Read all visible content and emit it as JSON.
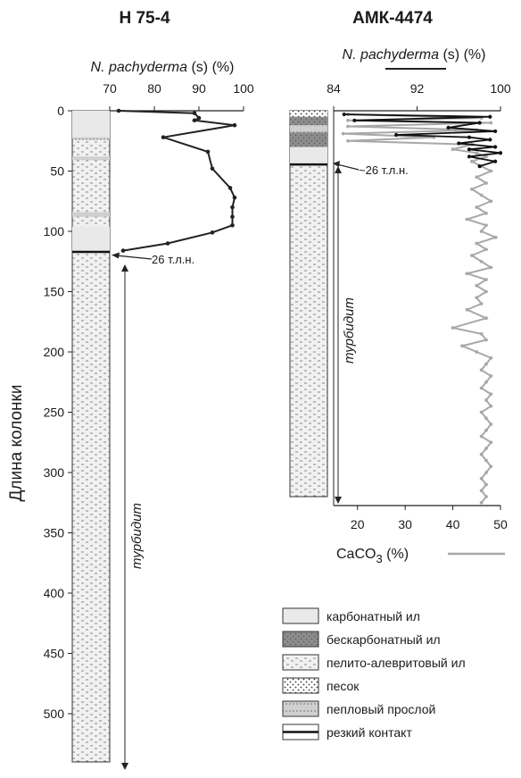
{
  "chart_data": [
    {
      "type": "line",
      "title": "Н 75-4",
      "ylabel": "Длина колонки",
      "x_axis_label": "N. pachyderma (s) (%)",
      "x_axis_species": "N. pachyderma",
      "x_axis_suffix": " (s) (%)",
      "xlim": [
        70,
        100
      ],
      "x_ticks": [
        "70",
        "80",
        "90",
        "100"
      ],
      "ylim": [
        0,
        540
      ],
      "y_ticks": [
        "0",
        "50",
        "100",
        "150",
        "200",
        "250",
        "300",
        "350",
        "400",
        "450",
        "500"
      ],
      "series": [
        {
          "color": "#222222",
          "x": [
            72,
            89,
            90,
            89,
            98,
            82,
            92,
            93,
            97,
            98,
            97.5,
            97.5,
            97.5,
            93,
            83,
            73
          ],
          "y": [
            0,
            2,
            6,
            8,
            12,
            22,
            34,
            48,
            64,
            72,
            80,
            88,
            95,
            101,
            110,
            116
          ]
        }
      ],
      "annotations": [
        {
          "text": "26 т.л.н.",
          "depth": 118
        },
        {
          "text": "турбидит",
          "depth_from": 118,
          "depth_to": 540
        }
      ]
    },
    {
      "type": "line",
      "title": "АМК-4474",
      "x_axis_label": "N. pachyderma (s) (%)",
      "x_axis_species": "N. pachyderma",
      "x_axis_suffix": " (s) (%)",
      "xlim": [
        84,
        100
      ],
      "x_ticks": [
        "84",
        "92",
        "100"
      ],
      "x2_axis_label": "CaCO₃ (%)",
      "x2_axis_base": "CaCO",
      "x2_axis_sub": "3",
      "x2_axis_suffix": " (%)",
      "x2lim": [
        15,
        50
      ],
      "x2_ticks": [
        "20",
        "30",
        "40",
        "50"
      ],
      "ylim": [
        0,
        540
      ],
      "series": [
        {
          "name_role": "N. pachyderma (s)",
          "color": "#111111",
          "x": [
            85,
            99,
            86,
            98,
            95,
            99.5,
            90,
            97,
            99,
            96,
            99.5,
            97,
            100,
            97,
            99.5,
            98
          ],
          "y": [
            3,
            5,
            8,
            10,
            14,
            17,
            20,
            22,
            24,
            27,
            30,
            32,
            35,
            38,
            42,
            46
          ]
        },
        {
          "name_role": "CaCO3",
          "color": "#a8a8a8",
          "x": [
            18,
            46,
            18,
            48,
            18,
            45,
            17,
            36,
            18,
            44,
            40,
            45,
            47,
            44,
            46,
            48,
            45,
            47,
            44,
            46,
            48,
            45,
            47,
            43,
            47,
            46,
            49,
            45,
            47,
            44,
            46,
            48,
            43,
            47,
            45,
            47,
            45,
            46,
            43,
            47,
            40,
            46,
            47,
            42,
            45,
            48,
            47,
            46,
            48,
            47,
            46,
            48,
            47,
            48,
            46,
            47,
            48,
            47,
            46,
            48,
            47,
            46,
            47,
            48,
            47,
            46,
            47,
            46,
            47,
            46
          ],
          "y": [
            3,
            6,
            8,
            10,
            13,
            16,
            19,
            22,
            25,
            28,
            32,
            35,
            38,
            42,
            46,
            50,
            55,
            60,
            65,
            70,
            75,
            80,
            85,
            90,
            95,
            100,
            105,
            110,
            115,
            120,
            125,
            130,
            135,
            140,
            145,
            150,
            155,
            160,
            165,
            172,
            180,
            185,
            190,
            195,
            200,
            205,
            210,
            215,
            220,
            225,
            230,
            235,
            240,
            245,
            250,
            255,
            260,
            265,
            270,
            275,
            280,
            285,
            290,
            295,
            300,
            305,
            310,
            315,
            320,
            325
          ]
        }
      ],
      "annotations": [
        {
          "text": "~26 т.л.н.",
          "depth": 45
        },
        {
          "text": "турбидит",
          "depth_from": 45,
          "depth_to": 320
        }
      ]
    }
  ],
  "legend": {
    "title": "",
    "items": [
      {
        "label": "карбонатный ил",
        "pattern": "carbonate"
      },
      {
        "label": "бескарбонатный ил",
        "pattern": "noncarbonate"
      },
      {
        "label": "пелито-алевритовый ил",
        "pattern": "pelitic"
      },
      {
        "label": "песок",
        "pattern": "sand"
      },
      {
        "label": "пепловый прослой",
        "pattern": "ash"
      },
      {
        "label": "резкий контакт",
        "pattern": "contact"
      }
    ]
  }
}
